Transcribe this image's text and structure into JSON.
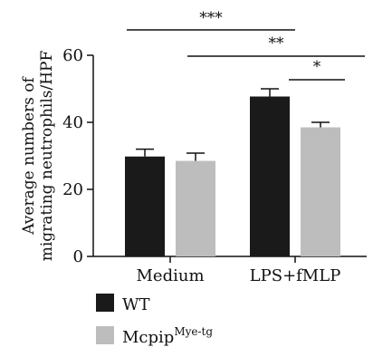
{
  "chart_data": {
    "type": "bar",
    "title": "",
    "xlabel": "",
    "ylabel_lines": [
      "Average numbers of",
      "migrating neutrophils/HPF"
    ],
    "ylim": [
      0,
      60
    ],
    "yticks": [
      0,
      20,
      40,
      60
    ],
    "categories": [
      "Medium",
      "LPS+fMLP"
    ],
    "series": [
      {
        "name": "WT",
        "color": "#1a1a1a",
        "values": [
          29.8,
          47.7
        ],
        "errors": [
          2.2,
          2.3
        ]
      },
      {
        "name": "Mcpip",
        "name_superscript": "Mye-tg",
        "color": "#bdbdbd",
        "values": [
          28.5,
          38.5
        ],
        "errors": [
          2.3,
          1.5
        ]
      }
    ],
    "significance": [
      {
        "label": "***",
        "from": "WT|Medium",
        "to": "WT|LPS+fMLP"
      },
      {
        "label": "**",
        "from": "Mcpip|Medium",
        "to": "Mcpip|LPS+fMLP"
      },
      {
        "label": "*",
        "from": "WT|LPS+fMLP",
        "to": "Mcpip|LPS+fMLP"
      }
    ],
    "legend_position": "bottom-left",
    "grid": false
  }
}
